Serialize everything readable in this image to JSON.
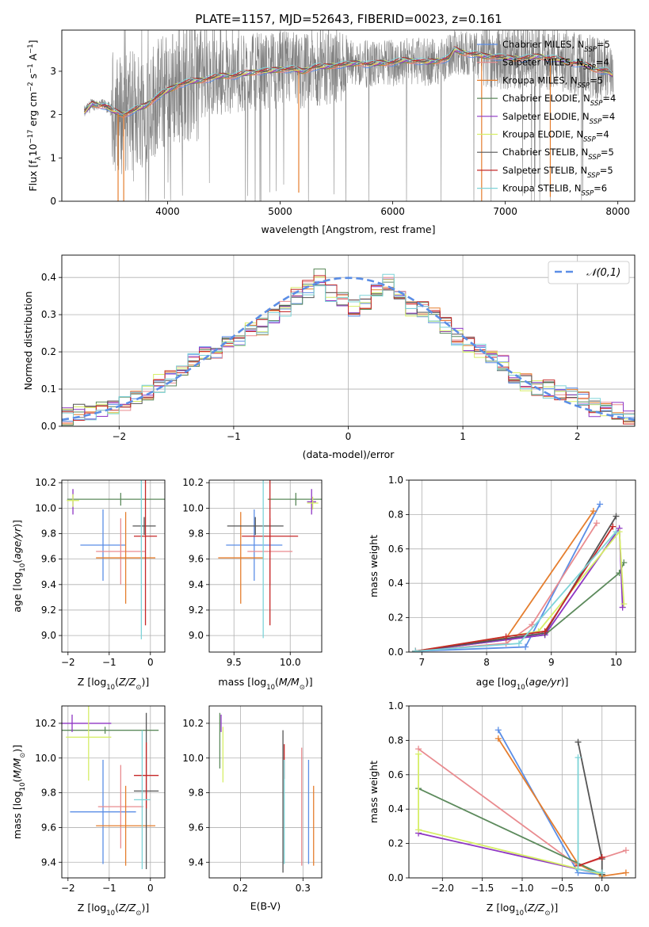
{
  "figure_title": "PLATE=1157, MJD=52643, FIBERID=0023, z=0.161",
  "models": [
    {
      "name": "Chabrier MILES",
      "nssp": "5",
      "color": "#5b8ee6"
    },
    {
      "name": "Salpeter MILES",
      "nssp": "4",
      "color": "#e98b8f"
    },
    {
      "name": "Kroupa MILES",
      "nssp": "5",
      "color": "#e57e2e"
    },
    {
      "name": "Chabrier ELODIE",
      "nssp": "4",
      "color": "#5c8a5c"
    },
    {
      "name": "Salpeter ELODIE",
      "nssp": "4",
      "color": "#8e35c4"
    },
    {
      "name": "Kroupa ELODIE",
      "nssp": "4",
      "color": "#d6ee66"
    },
    {
      "name": "Chabrier STELIB",
      "nssp": "5",
      "color": "#555555"
    },
    {
      "name": "Salpeter STELIB",
      "nssp": "5",
      "color": "#c62828"
    },
    {
      "name": "Kroupa STELIB",
      "nssp": "6",
      "color": "#7ed4d8"
    }
  ],
  "chart_data": [
    {
      "id": "spectrum",
      "type": "line",
      "xlabel": "wavelength [Angstrom, rest frame]",
      "ylabel": "Flux [f_λ 10^-17 erg cm^-2 s^-1 A^-1]",
      "xlim": [
        3060,
        8150
      ],
      "ylim": [
        0,
        3.95
      ],
      "xticks": [
        4000,
        5000,
        6000,
        7000,
        8000
      ],
      "yticks": [
        0,
        1,
        2,
        3
      ],
      "grid": false,
      "legend_position": "right",
      "data_color": "#808080",
      "continuum": {
        "x": [
          3260,
          3330,
          3450,
          3500,
          3600,
          3700,
          3800,
          3900,
          4000,
          4100,
          4200,
          4300,
          4400,
          4500,
          4600,
          4700,
          4800,
          4900,
          5000,
          5100,
          5200,
          5300,
          5400,
          5500,
          5600,
          5700,
          5800,
          5900,
          6000,
          6100,
          6200,
          6300,
          6400,
          6500,
          6550,
          6600,
          6700,
          6800,
          6900,
          7000,
          7100,
          7200,
          7300,
          7400,
          7500,
          7600,
          7700,
          7800,
          7900,
          7960
        ],
        "y": [
          2.05,
          2.25,
          2.2,
          2.1,
          2.0,
          2.1,
          2.2,
          2.4,
          2.55,
          2.7,
          2.75,
          2.8,
          2.85,
          2.9,
          2.9,
          2.95,
          3.0,
          3.0,
          3.05,
          3.05,
          3.0,
          3.1,
          3.1,
          3.15,
          3.15,
          3.2,
          3.15,
          3.2,
          3.2,
          3.25,
          3.25,
          3.2,
          3.25,
          3.3,
          3.5,
          3.45,
          3.4,
          3.35,
          3.35,
          3.3,
          3.3,
          3.3,
          3.35,
          3.3,
          3.25,
          3.2,
          3.15,
          3.05,
          3.0,
          2.9
        ]
      }
    },
    {
      "id": "residuals",
      "type": "area",
      "xlabel": "(data-model)/error",
      "ylabel": "Normed distribution",
      "xlim": [
        -2.5,
        2.5
      ],
      "ylim": [
        0,
        0.46
      ],
      "xticks": [
        -2,
        -1,
        0,
        1,
        2
      ],
      "yticks": [
        0,
        0.1,
        0.2,
        0.3,
        0.4
      ],
      "grid": true,
      "legend_position": "top-right",
      "legend_label": "𝒩(0,1)",
      "bin_edges": [
        -2.5,
        -2.4,
        -2.3,
        -2.2,
        -2.1,
        -2.0,
        -1.9,
        -1.8,
        -1.7,
        -1.6,
        -1.5,
        -1.4,
        -1.3,
        -1.2,
        -1.1,
        -1.0,
        -0.9,
        -0.8,
        -0.7,
        -0.6,
        -0.5,
        -0.4,
        -0.3,
        -0.2,
        -0.1,
        0.0,
        0.1,
        0.2,
        0.3,
        0.4,
        0.5,
        0.6,
        0.7,
        0.8,
        0.9,
        1.0,
        1.1,
        1.2,
        1.3,
        1.4,
        1.5,
        1.6,
        1.7,
        1.8,
        1.9,
        2.0,
        2.1,
        2.2,
        2.3,
        2.4,
        2.5
      ],
      "heights": [
        0.025,
        0.035,
        0.038,
        0.045,
        0.058,
        0.065,
        0.07,
        0.09,
        0.115,
        0.13,
        0.15,
        0.18,
        0.19,
        0.2,
        0.22,
        0.23,
        0.26,
        0.27,
        0.29,
        0.32,
        0.35,
        0.37,
        0.4,
        0.36,
        0.34,
        0.32,
        0.33,
        0.37,
        0.39,
        0.35,
        0.32,
        0.31,
        0.3,
        0.27,
        0.24,
        0.22,
        0.2,
        0.19,
        0.17,
        0.13,
        0.12,
        0.1,
        0.1,
        0.095,
        0.09,
        0.075,
        0.05,
        0.045,
        0.04,
        0.03
      ]
    },
    {
      "id": "age_vs_Z",
      "type": "scatter",
      "xlabel": "Z [log10(Z/Z⊙)]",
      "ylabel": "age [log10(age/yr)]",
      "xlim": [
        -2.15,
        0.35
      ],
      "ylim": [
        8.87,
        10.22
      ],
      "xticks": [
        -2,
        -1,
        0
      ],
      "yticks": [
        9.0,
        9.2,
        9.4,
        9.6,
        9.8,
        10.0,
        10.2
      ],
      "grid": true,
      "points": [
        [
          -1.15,
          9.71,
          0.55,
          0.28
        ],
        [
          -0.72,
          9.66,
          0.6,
          0.26
        ],
        [
          -0.6,
          9.61,
          0.72,
          0.36
        ],
        [
          -0.72,
          10.07,
          1.3,
          0.05
        ],
        [
          -1.88,
          10.05,
          0.0,
          0.1
        ],
        [
          -1.88,
          10.06,
          0.15,
          0.05
        ],
        [
          -0.15,
          9.86,
          0.28,
          0.07
        ],
        [
          -0.12,
          9.78,
          0.28,
          0.7
        ],
        [
          -0.22,
          9.77,
          0.0,
          0.8
        ]
      ]
    },
    {
      "id": "age_vs_mass",
      "type": "scatter",
      "xlabel": "mass [log10(M/M⊙)]",
      "ylabel": "",
      "xlim": [
        9.28,
        10.28
      ],
      "ylim": [
        8.87,
        10.22
      ],
      "xticks": [
        9.5,
        10.0
      ],
      "yticks": [
        9.0,
        9.2,
        9.4,
        9.6,
        9.8,
        10.0,
        10.2
      ],
      "grid": true,
      "points": [
        [
          9.68,
          9.71,
          0.25,
          0.28
        ],
        [
          9.82,
          9.66,
          0.2,
          0.26
        ],
        [
          9.56,
          9.61,
          0.2,
          0.36
        ],
        [
          10.05,
          10.07,
          0.25,
          0.05
        ],
        [
          10.19,
          10.05,
          0.04,
          0.1
        ],
        [
          10.2,
          10.04,
          0.05,
          0.05
        ],
        [
          9.69,
          9.86,
          0.25,
          0.07
        ],
        [
          9.82,
          9.78,
          0.25,
          0.7
        ],
        [
          9.76,
          9.78,
          0.0,
          0.8
        ]
      ]
    },
    {
      "id": "weight_vs_age",
      "type": "line",
      "xlabel": "age [log10(age/yr)]",
      "ylabel": "mass weight",
      "xlim": [
        6.8,
        10.3
      ],
      "ylim": [
        0,
        1
      ],
      "xticks": [
        7,
        8,
        9,
        10
      ],
      "yticks": [
        0,
        0.2,
        0.4,
        0.6,
        0.8,
        1.0
      ],
      "grid": true,
      "series": [
        {
          "model": 0,
          "x": [
            6.9,
            8.6,
            9.75
          ],
          "y": [
            0.005,
            0.03,
            0.86
          ]
        },
        {
          "model": 1,
          "x": [
            6.9,
            8.3,
            8.7,
            9.7
          ],
          "y": [
            0.005,
            0.05,
            0.16,
            0.75
          ]
        },
        {
          "model": 2,
          "x": [
            6.9,
            8.3,
            9.65
          ],
          "y": [
            0.005,
            0.08,
            0.82
          ]
        },
        {
          "model": 3,
          "x": [
            6.9,
            8.9,
            10.05,
            10.12
          ],
          "y": [
            0.005,
            0.1,
            0.46,
            0.52
          ]
        },
        {
          "model": 4,
          "x": [
            6.9,
            8.9,
            10.05,
            10.1
          ],
          "y": [
            0.005,
            0.1,
            0.72,
            0.26
          ]
        },
        {
          "model": 5,
          "x": [
            6.9,
            8.8,
            10.05,
            10.12
          ],
          "y": [
            0.005,
            0.12,
            0.7,
            0.28
          ]
        },
        {
          "model": 6,
          "x": [
            6.9,
            8.9,
            10.0
          ],
          "y": [
            0.005,
            0.11,
            0.79
          ]
        },
        {
          "model": 7,
          "x": [
            6.9,
            8.3,
            8.9,
            9.95
          ],
          "y": [
            0.005,
            0.09,
            0.12,
            0.73
          ]
        },
        {
          "model": 8,
          "x": [
            6.9,
            8.5,
            10.0
          ],
          "y": [
            0.005,
            0.05,
            0.7
          ]
        }
      ]
    },
    {
      "id": "mass_vs_Z",
      "type": "scatter",
      "xlabel": "Z [log10(Z/Z⊙)]",
      "ylabel": "mass [log10(M/M⊙)]",
      "xlim": [
        -2.15,
        0.35
      ],
      "ylim": [
        9.31,
        10.3
      ],
      "xticks": [
        -2,
        -1,
        0
      ],
      "yticks": [
        9.4,
        9.6,
        9.8,
        10.0,
        10.2
      ],
      "grid": true,
      "points": [
        [
          -1.15,
          9.69,
          0.8,
          0.3
        ],
        [
          -0.72,
          9.72,
          0.55,
          0.24
        ],
        [
          -0.6,
          9.61,
          0.72,
          0.23
        ],
        [
          -1.1,
          10.16,
          1.3,
          0.02
        ],
        [
          -1.9,
          10.2,
          0.95,
          0.05
        ],
        [
          -1.5,
          10.12,
          0.55,
          0.25
        ],
        [
          -0.1,
          9.81,
          0.3,
          0.45
        ],
        [
          -0.1,
          9.9,
          0.3,
          0.19
        ],
        [
          -0.2,
          9.76,
          0.2,
          0.4
        ]
      ]
    },
    {
      "id": "mass_vs_ebv",
      "type": "scatter",
      "xlabel": "E(B-V)",
      "ylabel": "",
      "xlim": [
        0.15,
        0.33
      ],
      "ylim": [
        9.31,
        10.3
      ],
      "xticks": [
        0.2,
        0.3
      ],
      "yticks": [
        9.4,
        9.6,
        9.8,
        10.0,
        10.2
      ],
      "grid": true,
      "points": [
        [
          0.309,
          9.69,
          0,
          0.3
        ],
        [
          0.298,
          9.72,
          0,
          0.34
        ],
        [
          0.317,
          9.61,
          0,
          0.23
        ],
        [
          0.167,
          10.1,
          0,
          0.16
        ],
        [
          0.169,
          10.2,
          0,
          0.05
        ],
        [
          0.172,
          10.02,
          0,
          0.16
        ],
        [
          0.268,
          9.75,
          0,
          0.41
        ],
        [
          0.27,
          9.98,
          0,
          0.1
        ],
        [
          0.27,
          9.69,
          0,
          0.3
        ]
      ]
    },
    {
      "id": "weight_vs_Z",
      "type": "line",
      "xlabel": "Z [log10(Z/Z⊙)]",
      "ylabel": "mass weight",
      "xlim": [
        -2.42,
        0.42
      ],
      "ylim": [
        0,
        1
      ],
      "xticks": [
        -2.0,
        -1.5,
        -1.0,
        -0.5,
        0.0
      ],
      "yticks": [
        0,
        0.2,
        0.4,
        0.6,
        0.8,
        1.0
      ],
      "grid": true,
      "series": [
        {
          "model": 0,
          "x": [
            -1.3,
            -0.3,
            0.0
          ],
          "y": [
            0.86,
            0.03,
            0.02
          ]
        },
        {
          "model": 1,
          "x": [
            -2.3,
            -0.3,
            0.3
          ],
          "y": [
            0.75,
            0.07,
            0.16
          ]
        },
        {
          "model": 2,
          "x": [
            -1.3,
            -0.3,
            0.0,
            0.3
          ],
          "y": [
            0.81,
            0.08,
            0.01,
            0.03
          ]
        },
        {
          "model": 3,
          "x": [
            -2.3,
            0.0
          ],
          "y": [
            0.52,
            0.02
          ]
        },
        {
          "model": 4,
          "x": [
            -2.3,
            0.0
          ],
          "y": [
            0.26,
            0.02
          ]
        },
        {
          "model": 5,
          "x": [
            -2.3,
            -2.3,
            0.0
          ],
          "y": [
            0.72,
            0.28,
            0.02
          ]
        },
        {
          "model": 6,
          "x": [
            -0.3,
            0.0,
            0.0
          ],
          "y": [
            0.79,
            0.11,
            0.02
          ]
        },
        {
          "model": 7,
          "x": [
            -0.3,
            0.0
          ],
          "y": [
            0.07,
            0.12
          ]
        },
        {
          "model": 8,
          "x": [
            -0.3,
            -0.3,
            0.0
          ],
          "y": [
            0.7,
            0.05,
            0.03
          ]
        }
      ]
    }
  ]
}
